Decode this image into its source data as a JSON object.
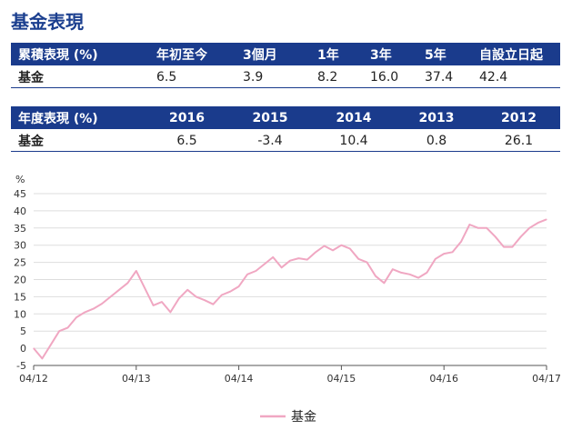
{
  "title": "基金表現",
  "cumulative": {
    "headers": [
      "累積表現 (%)",
      "年初至今",
      "3個月",
      "1年",
      "3年",
      "5年",
      "自設立日起"
    ],
    "row_label": "基金",
    "values": [
      "6.5",
      "3.9",
      "8.2",
      "16.0",
      "37.4",
      "42.4"
    ]
  },
  "annual": {
    "headers": [
      "年度表現 (%)",
      "2016",
      "2015",
      "2014",
      "2013",
      "2012"
    ],
    "row_label": "基金",
    "values": [
      "6.5",
      "-3.4",
      "10.4",
      "0.8",
      "26.1"
    ]
  },
  "chart_data": {
    "type": "line",
    "unit_label": "%",
    "ylim": [
      -5,
      45
    ],
    "yticks": [
      -5,
      0,
      5,
      10,
      15,
      20,
      25,
      30,
      35,
      40,
      45
    ],
    "xticks": [
      "04/12",
      "04/13",
      "04/14",
      "04/15",
      "04/16",
      "04/17"
    ],
    "grid": true,
    "legend_position": "bottom-center",
    "colors": {
      "series": "#f0a7c2",
      "grid": "#dddddd",
      "header": "#1a3b8c"
    },
    "series": [
      {
        "name": "基金",
        "x": [
          "2012-04",
          "2012-05",
          "2012-06",
          "2012-07",
          "2012-08",
          "2012-09",
          "2012-10",
          "2012-11",
          "2012-12",
          "2013-01",
          "2013-02",
          "2013-03",
          "2013-04",
          "2013-05",
          "2013-06",
          "2013-07",
          "2013-08",
          "2013-09",
          "2013-10",
          "2013-11",
          "2013-12",
          "2014-01",
          "2014-02",
          "2014-03",
          "2014-04",
          "2014-05",
          "2014-06",
          "2014-07",
          "2014-08",
          "2014-09",
          "2014-10",
          "2014-11",
          "2014-12",
          "2015-01",
          "2015-02",
          "2015-03",
          "2015-04",
          "2015-05",
          "2015-06",
          "2015-07",
          "2015-08",
          "2015-09",
          "2015-10",
          "2015-11",
          "2015-12",
          "2016-01",
          "2016-02",
          "2016-03",
          "2016-04",
          "2016-05",
          "2016-06",
          "2016-07",
          "2016-08",
          "2016-09",
          "2016-10",
          "2016-11",
          "2016-12",
          "2017-01",
          "2017-02",
          "2017-03",
          "2017-04"
        ],
        "values": [
          0,
          -3,
          1,
          5,
          6,
          9,
          10.5,
          11.5,
          13,
          15,
          17,
          19,
          22.5,
          17.5,
          12.5,
          13.5,
          10.5,
          14.5,
          17,
          15,
          14,
          12.8,
          15.5,
          16.5,
          18,
          21.5,
          22.5,
          24.5,
          26.5,
          23.5,
          25.5,
          26.2,
          25.8,
          28,
          29.8,
          28.5,
          30,
          29,
          26,
          25,
          21,
          19,
          23,
          22,
          21.5,
          20.5,
          22,
          26,
          27.5,
          28,
          31,
          36,
          35,
          35,
          32.5,
          29.5,
          29.5,
          32.5,
          35,
          36.5,
          37.5
        ]
      }
    ]
  }
}
